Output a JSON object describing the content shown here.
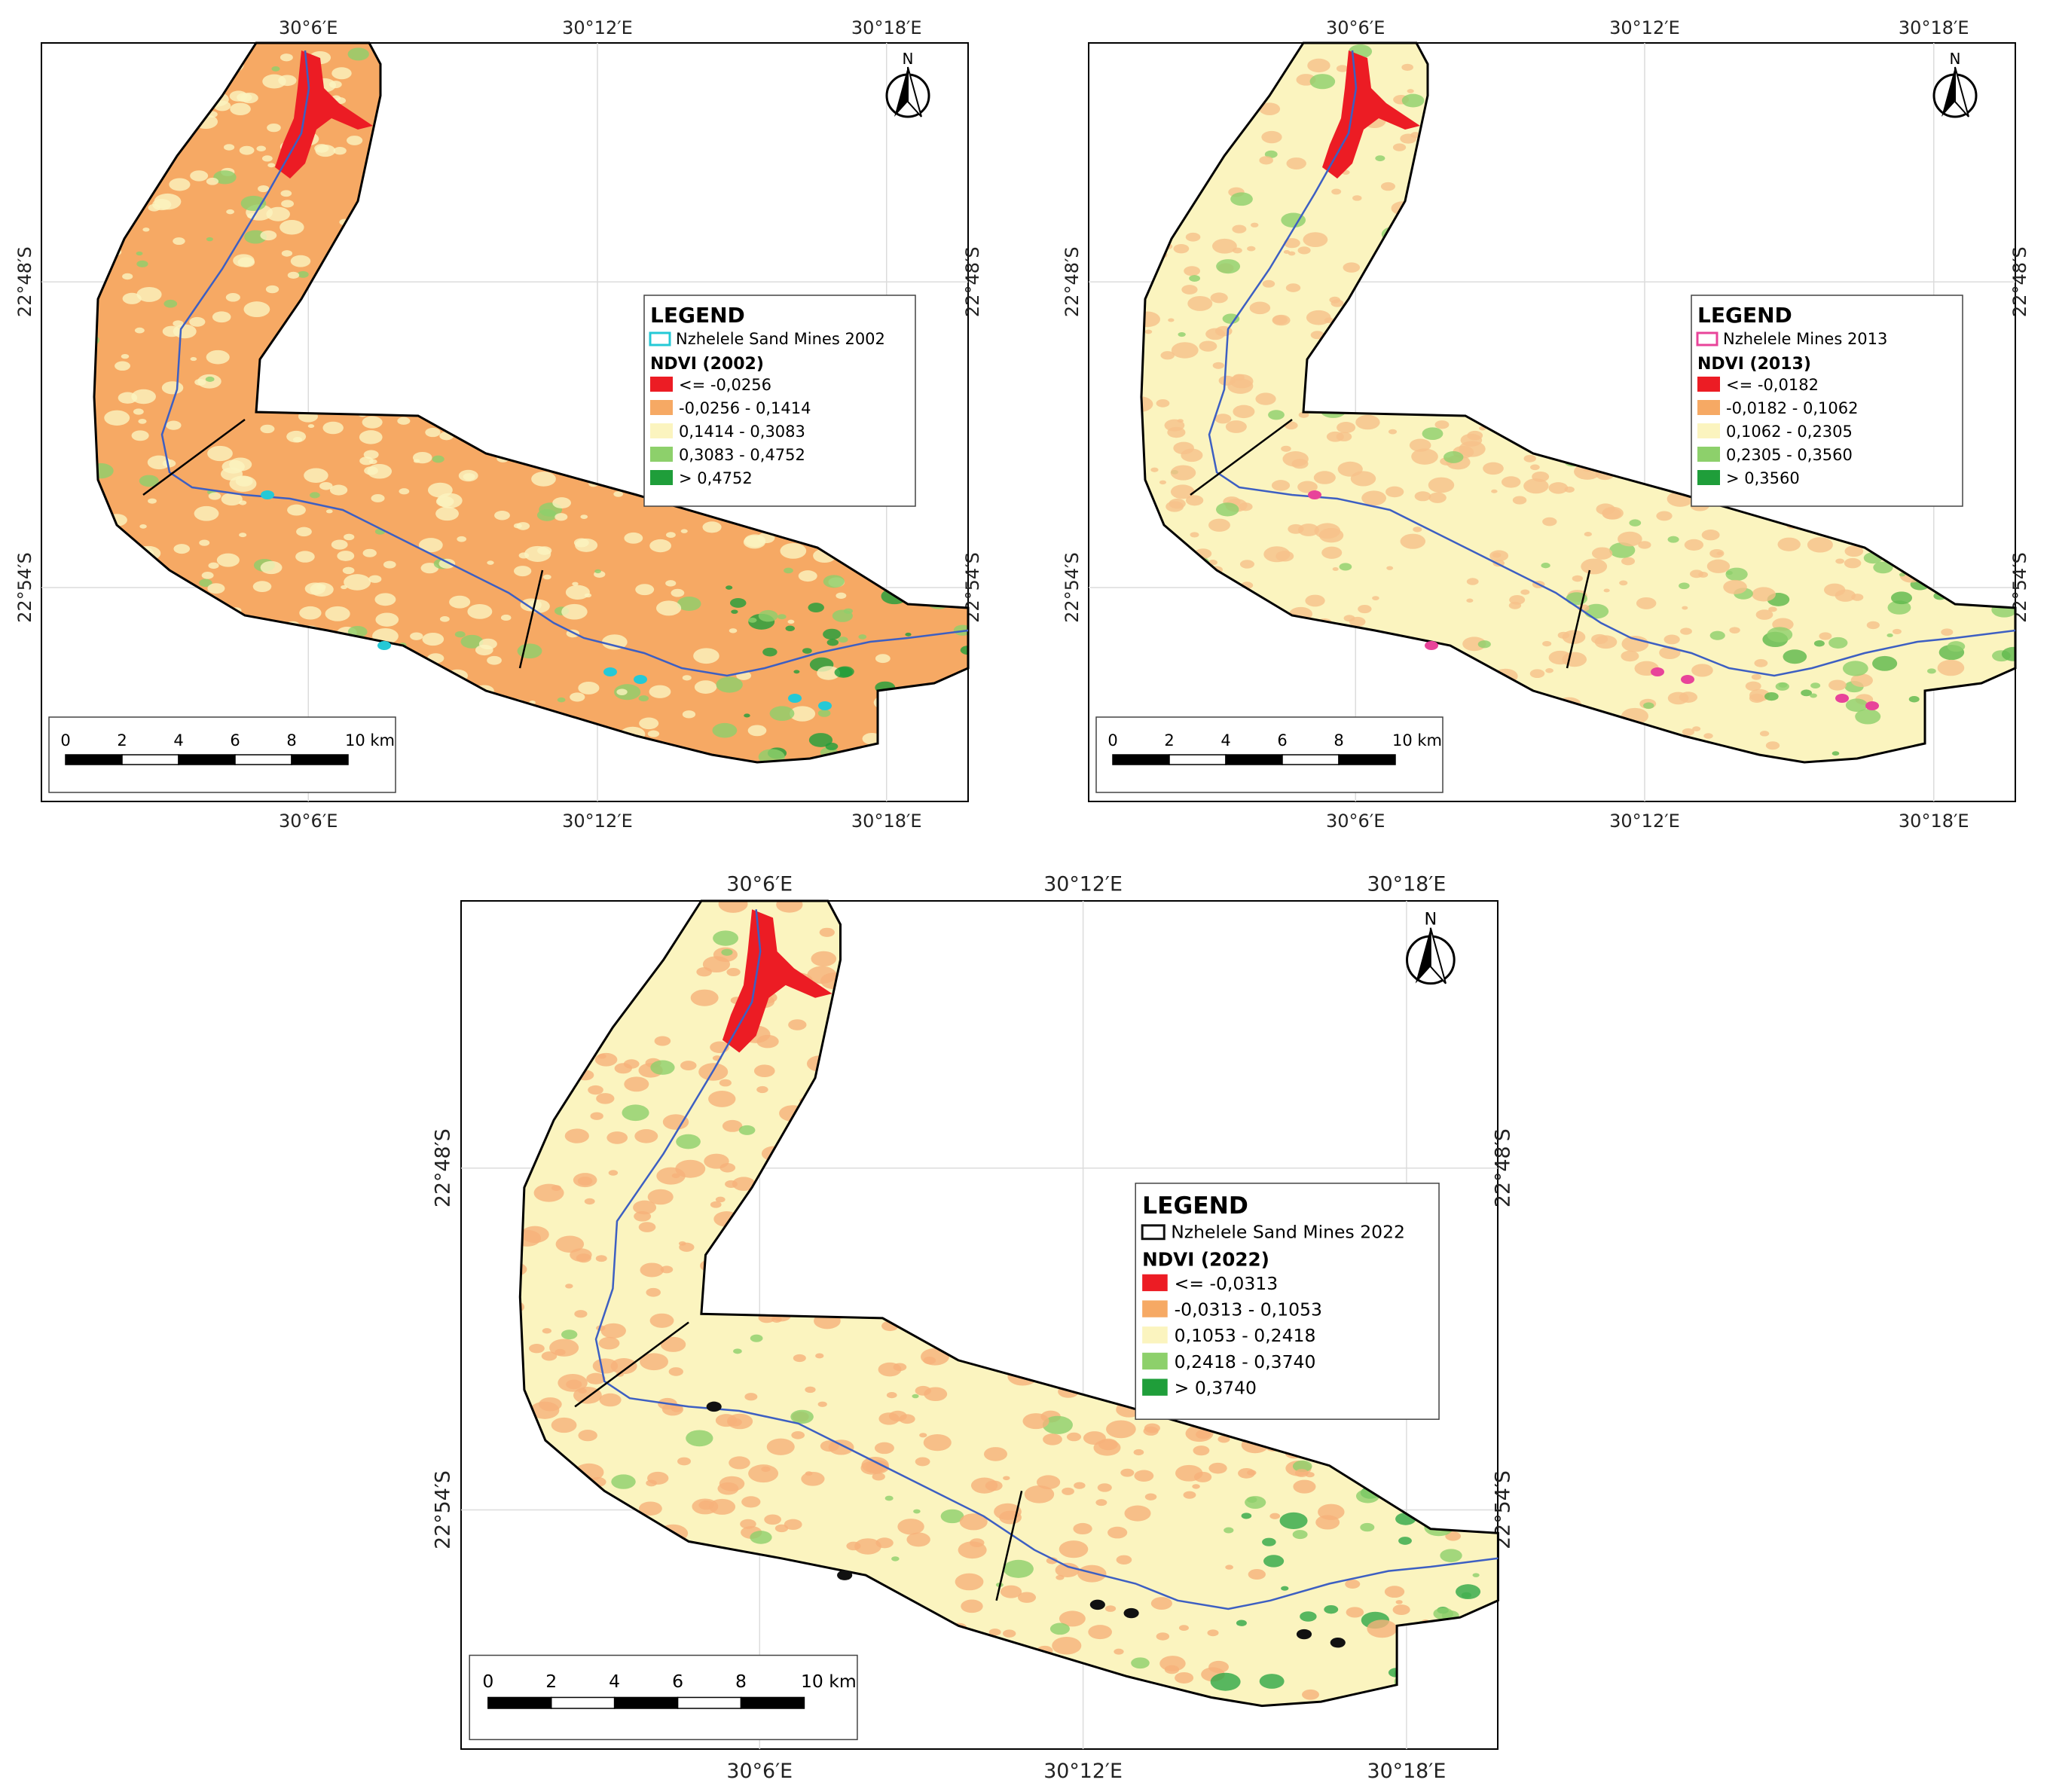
{
  "maps": [
    {
      "id": "map-2002",
      "palette": {
        "base": "#f6a964",
        "speckle": "#fbf4bf",
        "green": "#8dd06b",
        "darkgreen": "#1f9e3a"
      },
      "x_ticks": [
        "30°6′E",
        "30°12′E",
        "30°18′E"
      ],
      "y_ticks": [
        "22°48′S",
        "22°54′S"
      ],
      "legend": {
        "title": "LEGEND",
        "mines_label": "Nzhelele Sand Mines 2002",
        "mines_color": "#25c9d6",
        "ndvi_title": "NDVI (2002)",
        "classes": [
          {
            "label": "<= -0,0256",
            "color": "#ec1c24"
          },
          {
            "label": "-0,0256 - 0,1414",
            "color": "#f6a964"
          },
          {
            "label": "0,1414 - 0,3083",
            "color": "#fbf4bf"
          },
          {
            "label": "0,3083 - 0,4752",
            "color": "#8dd06b"
          },
          {
            "label": "> 0,4752",
            "color": "#1f9e3a"
          }
        ]
      },
      "scalebar": {
        "labels": [
          "0",
          "2",
          "4",
          "6",
          "8",
          "10 km"
        ]
      },
      "north": "N"
    },
    {
      "id": "map-2013",
      "palette": {
        "base": "#fbf4bf",
        "speckle": "#f6c18a",
        "green": "#8dd06b",
        "darkgreen": "#5cb84b"
      },
      "x_ticks": [
        "30°6′E",
        "30°12′E",
        "30°18′E"
      ],
      "y_ticks": [
        "22°48′S",
        "22°54′S"
      ],
      "legend": {
        "title": "LEGEND",
        "mines_label": "Nzhelele Mines 2013",
        "mines_color": "#e8449a",
        "ndvi_title": "NDVI (2013)",
        "classes": [
          {
            "label": "<= -0,0182",
            "color": "#ec1c24"
          },
          {
            "label": "-0,0182 - 0,1062",
            "color": "#f6a964"
          },
          {
            "label": "0,1062 - 0,2305",
            "color": "#fbf4bf"
          },
          {
            "label": "0,2305 - 0,3560",
            "color": "#8dd06b"
          },
          {
            "label": "> 0,3560",
            "color": "#1f9e3a"
          }
        ]
      },
      "scalebar": {
        "labels": [
          "0",
          "2",
          "4",
          "6",
          "8",
          "10 km"
        ]
      },
      "north": "N"
    },
    {
      "id": "map-2022",
      "palette": {
        "base": "#fbf4bf",
        "speckle": "#f6b27a",
        "green": "#8dd06b",
        "darkgreen": "#2fa847"
      },
      "x_ticks": [
        "30°6′E",
        "30°12′E",
        "30°18′E"
      ],
      "y_ticks": [
        "22°48′S",
        "22°54′S"
      ],
      "legend": {
        "title": "LEGEND",
        "mines_label": "Nzhelele Sand Mines 2022",
        "mines_color": "#111111",
        "ndvi_title": "NDVI (2022)",
        "classes": [
          {
            "label": "<= -0,0313",
            "color": "#ec1c24"
          },
          {
            "label": "-0,0313 - 0,1053",
            "color": "#f6a964"
          },
          {
            "label": "0,1053 - 0,2418",
            "color": "#fbf4bf"
          },
          {
            "label": "0,2418 - 0,3740",
            "color": "#8dd06b"
          },
          {
            "label": "> 0,3740",
            "color": "#1f9e3a"
          }
        ]
      },
      "scalebar": {
        "labels": [
          "0",
          "2",
          "4",
          "6",
          "8",
          "10 km"
        ]
      },
      "north": "N"
    }
  ]
}
